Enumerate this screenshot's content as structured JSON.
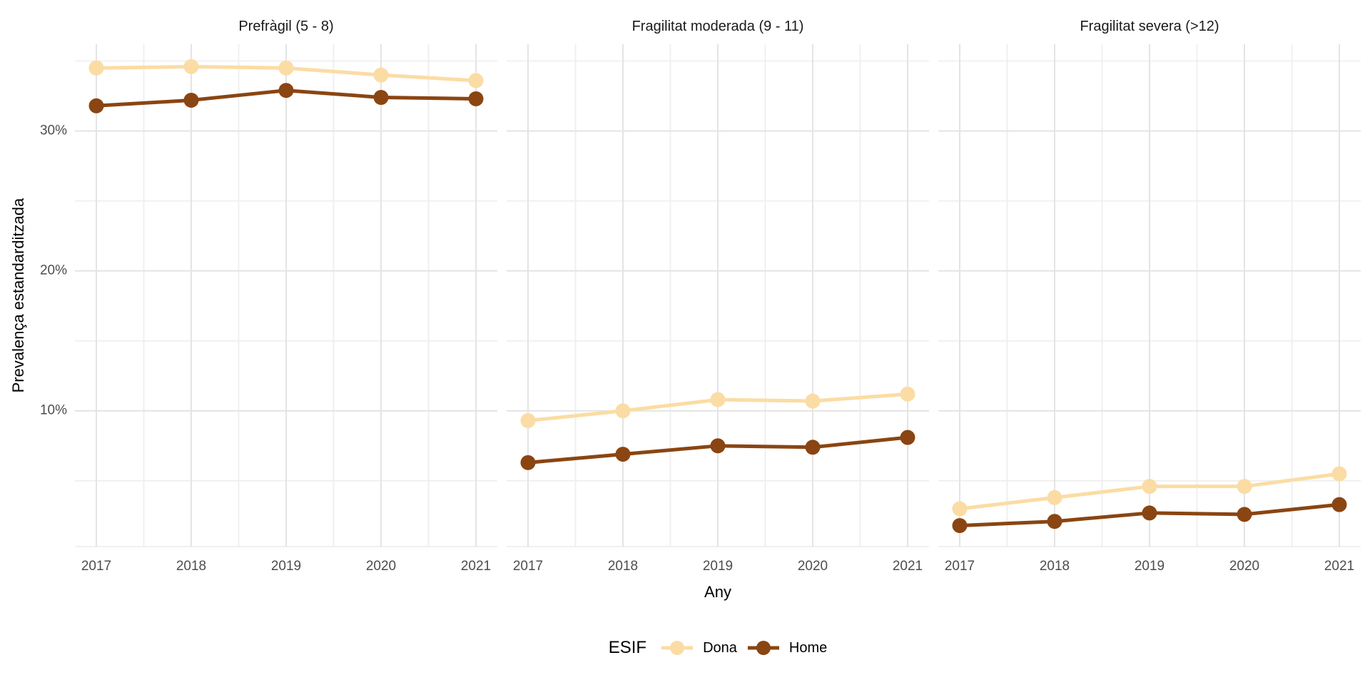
{
  "chart_data": {
    "type": "line",
    "x": [
      2017,
      2018,
      2019,
      2020,
      2021
    ],
    "xlabel": "Any",
    "ylabel": "Prevalença estandarditzada",
    "y_ticks": [
      {
        "value": 30,
        "label": "30%"
      },
      {
        "value": 20,
        "label": "20%"
      },
      {
        "value": 10,
        "label": "10%"
      }
    ],
    "y_minor": [
      35,
      25,
      15,
      5,
      0.3
    ],
    "ylim": [
      0.3,
      36.2
    ],
    "grid": true,
    "legend": {
      "title": "ESIF",
      "position": "bottom",
      "items": [
        {
          "name": "Dona",
          "color": "#FBDCA4"
        },
        {
          "name": "Home",
          "color": "#8A4512"
        }
      ]
    },
    "facets": [
      {
        "title": "Prefràgil (5 - 8)",
        "series": [
          {
            "name": "Dona",
            "values": [
              34.5,
              34.6,
              34.5,
              34.0,
              33.6
            ]
          },
          {
            "name": "Home",
            "values": [
              31.8,
              32.2,
              32.9,
              32.4,
              32.3
            ]
          }
        ]
      },
      {
        "title": "Fragilitat moderada (9 - 11)",
        "series": [
          {
            "name": "Dona",
            "values": [
              9.3,
              10.0,
              10.8,
              10.7,
              11.2
            ]
          },
          {
            "name": "Home",
            "values": [
              6.3,
              6.9,
              7.5,
              7.4,
              8.1
            ]
          }
        ]
      },
      {
        "title": "Fragilitat severa (>12)",
        "series": [
          {
            "name": "Dona",
            "values": [
              3.0,
              3.8,
              4.6,
              4.6,
              5.5
            ]
          },
          {
            "name": "Home",
            "values": [
              1.8,
              2.1,
              2.7,
              2.6,
              3.3
            ]
          }
        ]
      }
    ],
    "colors": {
      "background": "#FFFFFF",
      "grid_major": "#E4E4E4",
      "grid_minor": "#EFEFEF",
      "tick_text": "#4D4D4D",
      "title_text": "#1A1A1A"
    }
  }
}
